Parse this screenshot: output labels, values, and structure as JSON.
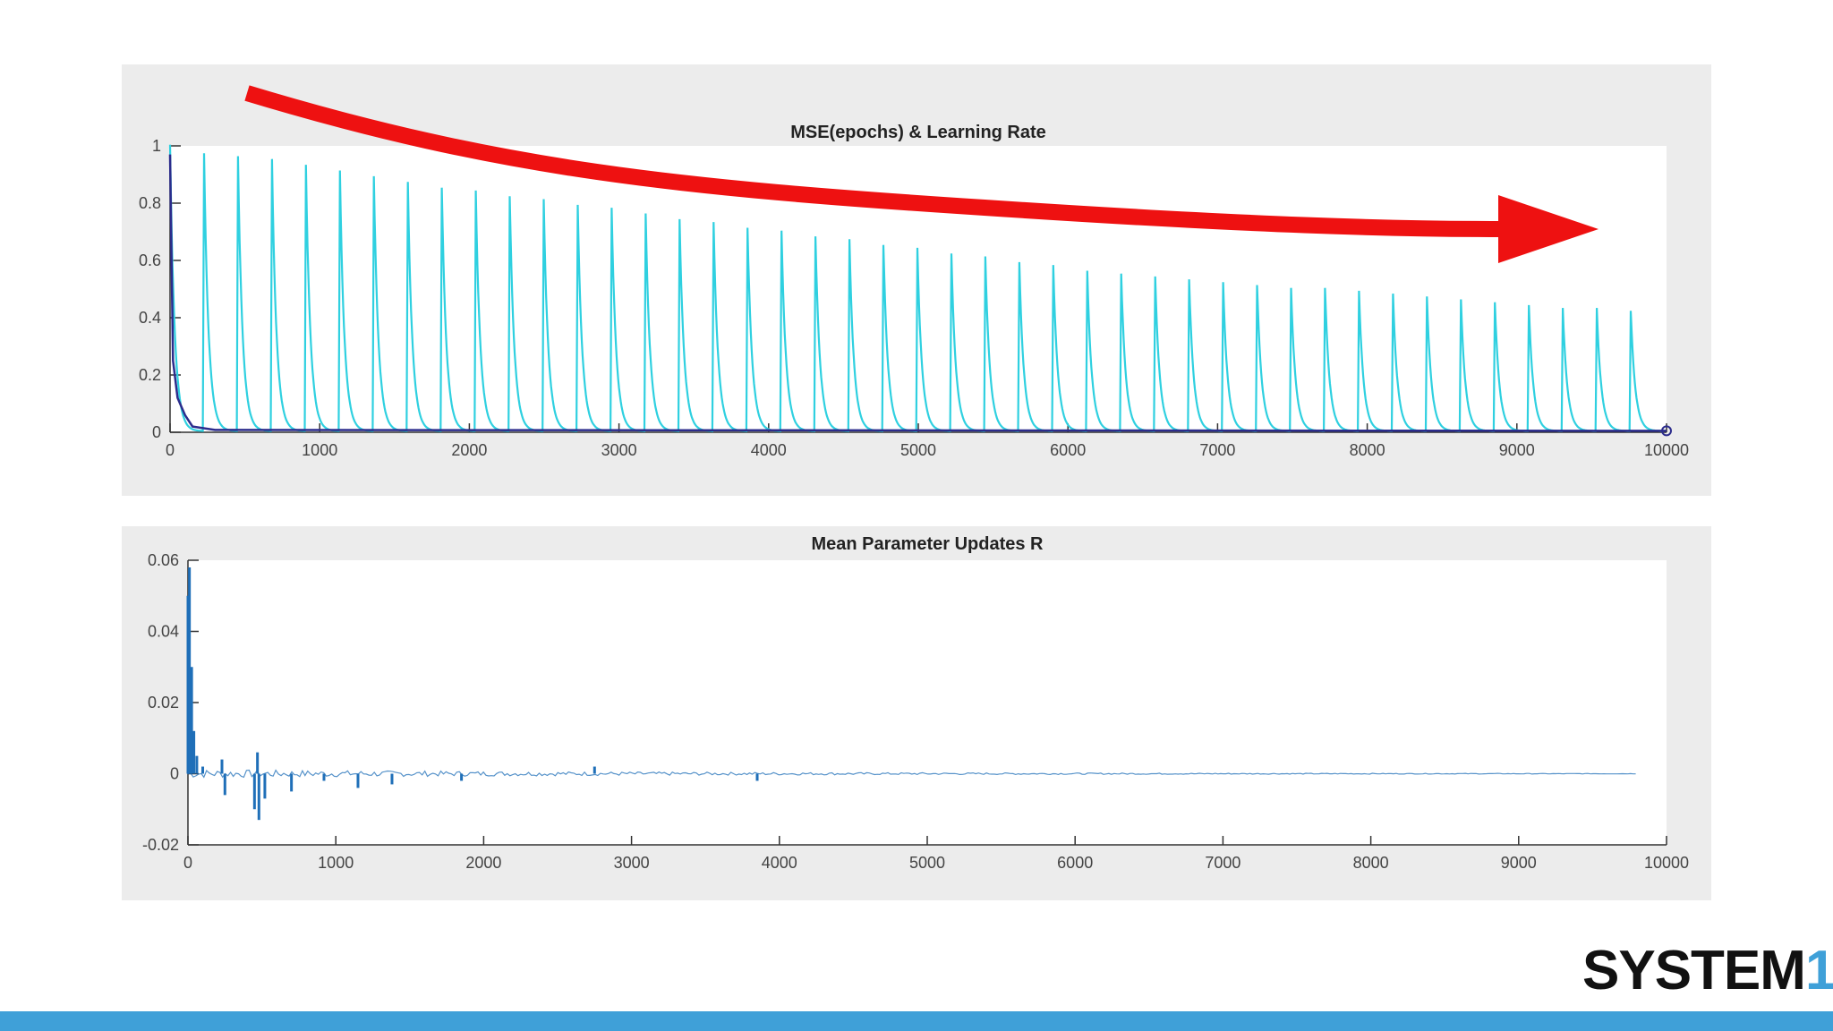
{
  "colors": {
    "panel_bg": "#ececec",
    "plot_bg": "#ffffff",
    "mse_line": "#2fd0e0",
    "lr_line": "#2c2c8c",
    "updates_line": "#1f6fb8",
    "arrow": "#ee1111",
    "bottom_bar": "#3fa0d8",
    "brand_accent": "#3fa0d8"
  },
  "brand": {
    "text": "SYSTEM",
    "accent": "1"
  },
  "chart_data": [
    {
      "type": "line",
      "title": "MSE(epochs) & Learning Rate",
      "xlim": [
        0,
        10000
      ],
      "ylim": [
        0,
        1
      ],
      "x_ticks": [
        "0",
        "1000",
        "2000",
        "3000",
        "4000",
        "5000",
        "6000",
        "7000",
        "8000",
        "9000",
        "10000"
      ],
      "y_ticks": [
        "0",
        "0.2",
        "0.4",
        "0.6",
        "0.8",
        "1"
      ],
      "series": [
        {
          "kind": "mse_cycles",
          "cycle_period": 227,
          "peaks": [
            1.0,
            0.97,
            0.96,
            0.95,
            0.93,
            0.91,
            0.89,
            0.87,
            0.85,
            0.84,
            0.82,
            0.81,
            0.79,
            0.78,
            0.76,
            0.74,
            0.73,
            0.71,
            0.7,
            0.68,
            0.67,
            0.65,
            0.64,
            0.62,
            0.61,
            0.59,
            0.58,
            0.56,
            0.55,
            0.54,
            0.53,
            0.52,
            0.51,
            0.5,
            0.5,
            0.49,
            0.48,
            0.47,
            0.46,
            0.45,
            0.44,
            0.43,
            0.43,
            0.42
          ],
          "decay": 90
        },
        {
          "kind": "learning_rate",
          "x": [
            0,
            20,
            50,
            100,
            150,
            300,
            10000
          ],
          "values": [
            0.97,
            0.25,
            0.12,
            0.06,
            0.02,
            0.008,
            0.005
          ]
        }
      ],
      "annotations": [
        "red curved arrow indicating decreasing trend"
      ]
    },
    {
      "type": "line",
      "title": "Mean Parameter Updates R",
      "xlim": [
        0,
        10000
      ],
      "ylim": [
        -0.02,
        0.06
      ],
      "x_ticks": [
        "0",
        "1000",
        "2000",
        "3000",
        "4000",
        "5000",
        "6000",
        "7000",
        "8000",
        "9000",
        "10000"
      ],
      "y_ticks": [
        "-0.02",
        "0",
        "0.02",
        "0.04",
        "0.06"
      ],
      "series": [
        {
          "kind": "updates",
          "spikes": [
            {
              "x": 0,
              "y": 0.05
            },
            {
              "x": 10,
              "y": 0.058
            },
            {
              "x": 25,
              "y": 0.03
            },
            {
              "x": 40,
              "y": 0.012
            },
            {
              "x": 60,
              "y": 0.005
            },
            {
              "x": 100,
              "y": 0.002
            },
            {
              "x": 230,
              "y": 0.004
            },
            {
              "x": 250,
              "y": -0.006
            },
            {
              "x": 450,
              "y": -0.01
            },
            {
              "x": 470,
              "y": 0.006
            },
            {
              "x": 480,
              "y": -0.013
            },
            {
              "x": 520,
              "y": -0.007
            },
            {
              "x": 700,
              "y": -0.005
            },
            {
              "x": 920,
              "y": -0.002
            },
            {
              "x": 1150,
              "y": -0.004
            },
            {
              "x": 1380,
              "y": -0.003
            },
            {
              "x": 1850,
              "y": -0.002
            },
            {
              "x": 2750,
              "y": 0.002
            },
            {
              "x": 3850,
              "y": -0.002
            }
          ],
          "noise_until": 9800
        }
      ]
    }
  ]
}
